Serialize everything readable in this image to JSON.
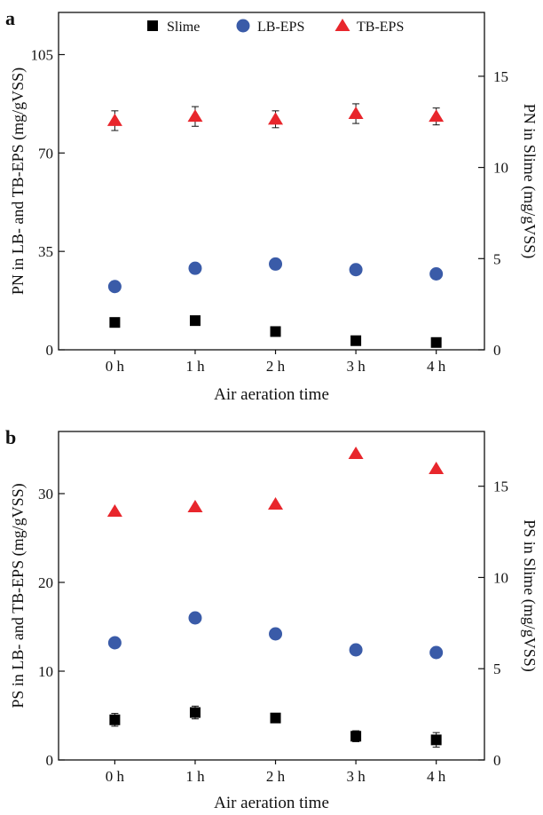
{
  "chart_data": [
    {
      "panel_label": "a",
      "type": "scatter",
      "categories": [
        "0 h",
        "1 h",
        "2 h",
        "3 h",
        "4 h"
      ],
      "xlabel": "Air aeration time",
      "ylabel_left": "PN in LB- and TB-EPS (mg/gVSS)",
      "ylabel_right": "PN in Slime (mg/gVSS)",
      "ylim_left": [
        0,
        120
      ],
      "ylim_right": [
        0,
        18.5
      ],
      "yticks_left": [
        0,
        35,
        70,
        105
      ],
      "yticks_right": [
        0,
        5,
        10,
        15
      ],
      "legend_position": "top",
      "series": [
        {
          "name": "Slime",
          "axis": "right",
          "marker": "square",
          "color": "#000000",
          "values": [
            1.5,
            1.6,
            1.0,
            0.5,
            0.4
          ],
          "errors": [
            0,
            0,
            0,
            0,
            0
          ]
        },
        {
          "name": "LB-EPS",
          "axis": "left",
          "marker": "circle",
          "color": "#3a5ba8",
          "values": [
            22.5,
            29.0,
            30.5,
            28.5,
            27.0
          ],
          "errors": [
            0,
            0,
            0,
            0,
            0
          ]
        },
        {
          "name": "TB-EPS",
          "axis": "left",
          "marker": "triangle",
          "color": "#e8262c",
          "values": [
            81.5,
            83.0,
            82.0,
            84.0,
            83.0
          ],
          "errors": [
            3.5,
            3.5,
            3.0,
            3.5,
            3.0
          ]
        }
      ]
    },
    {
      "panel_label": "b",
      "type": "scatter",
      "categories": [
        "0 h",
        "1 h",
        "2 h",
        "3 h",
        "4 h"
      ],
      "xlabel": "Air aeration time",
      "ylabel_left": "PS in LB- and TB-EPS (mg/gVSS)",
      "ylabel_right": "PS in Slime (mg/gVSS)",
      "ylim_left": [
        0,
        37
      ],
      "ylim_right": [
        0,
        18
      ],
      "yticks_left": [
        0,
        10,
        20,
        30
      ],
      "yticks_right": [
        0,
        5,
        10,
        15
      ],
      "legend_position": "none",
      "series": [
        {
          "name": "Slime",
          "axis": "right",
          "marker": "square",
          "color": "#000000",
          "values": [
            2.2,
            2.6,
            2.3,
            1.3,
            1.1
          ],
          "errors": [
            0.35,
            0.35,
            0.25,
            0.3,
            0.4
          ]
        },
        {
          "name": "LB-EPS",
          "axis": "left",
          "marker": "circle",
          "color": "#3a5ba8",
          "values": [
            13.2,
            16.0,
            14.2,
            12.4,
            12.1
          ],
          "errors": [
            0,
            0,
            0,
            0,
            0
          ]
        },
        {
          "name": "TB-EPS",
          "axis": "left",
          "marker": "triangle",
          "color": "#e8262c",
          "values": [
            28.0,
            28.5,
            28.8,
            34.5,
            32.8
          ],
          "errors": [
            0,
            0,
            0,
            0,
            0
          ]
        }
      ]
    }
  ]
}
